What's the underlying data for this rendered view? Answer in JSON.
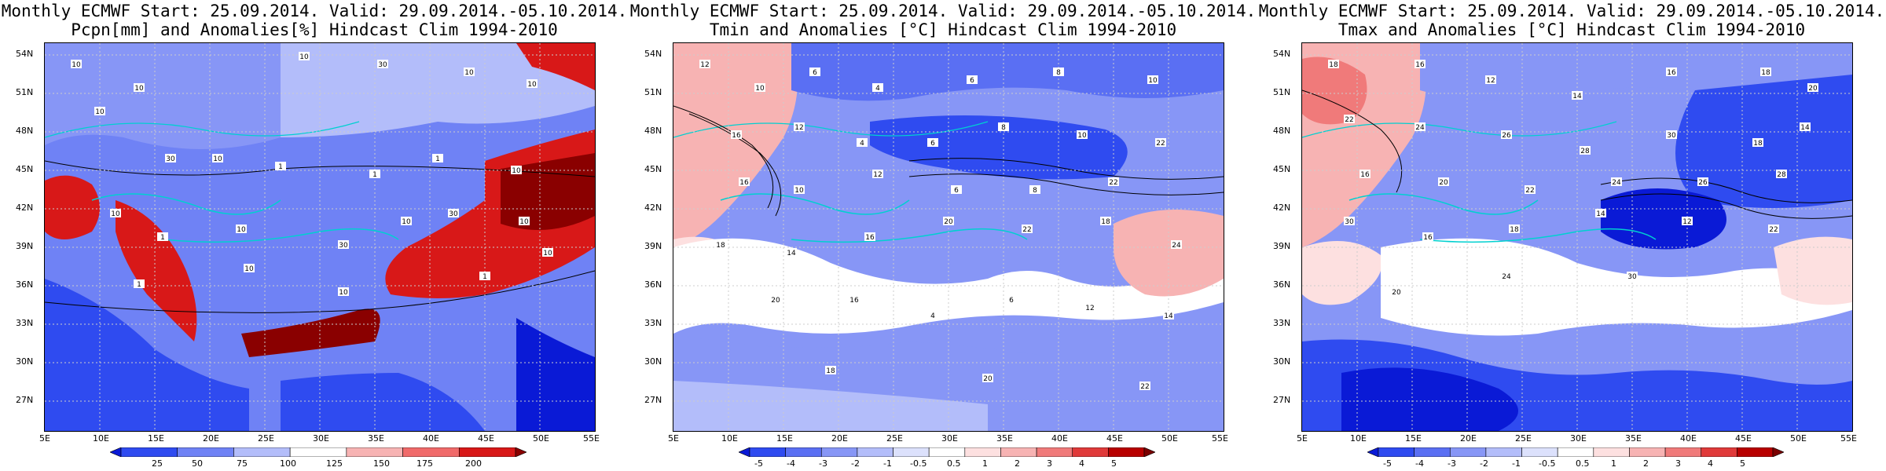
{
  "panels": [
    {
      "title1": "Monthly ECMWF Start: 25.09.2014. Valid: 29.09.2014.-05.10.2014.",
      "title2": "Pcpn[mm] and Anomalies[%] Hindcast Clim 1994-2010",
      "colorbar_labels": [
        "25",
        "50",
        "75",
        "100",
        "125",
        "150",
        "175",
        "200"
      ],
      "colorbar_colors": [
        "#0a1ad6",
        "#2f4bf0",
        "#6f82f5",
        "#b3bdfa",
        "#ffffff",
        "#f7b3b3",
        "#f06a6a",
        "#d81818",
        "#8a0000"
      ],
      "contour_labels": [
        "10",
        "10",
        "10",
        "10",
        "30",
        "10",
        "10",
        "30",
        "10",
        "1",
        "1",
        "1",
        "10",
        "10",
        "1",
        "10",
        "30",
        "10",
        "30",
        "10",
        "1",
        "10",
        "10",
        "1",
        "10"
      ]
    },
    {
      "title1": "Monthly ECMWF Start: 25.09.2014. Valid: 29.09.2014.-05.10.2014.",
      "title2": "Tmin and Anomalies [°C] Hindcast Clim 1994-2010",
      "colorbar_labels": [
        "-5",
        "-4",
        "-3",
        "-2",
        "-1",
        "-0.5",
        "0.5",
        "1",
        "2",
        "3",
        "4",
        "5"
      ],
      "colorbar_colors": [
        "#0a1ad6",
        "#2f4bf0",
        "#5a6ff3",
        "#8796f6",
        "#b3bdfa",
        "#dce1fc",
        "#ffffff",
        "#fde0e0",
        "#f7b3b3",
        "#f07a7a",
        "#e03a3a",
        "#b80000",
        "#7a0000"
      ],
      "contour_labels": [
        "12",
        "10",
        "6",
        "4",
        "6",
        "8",
        "10",
        "16",
        "12",
        "4",
        "6",
        "8",
        "10",
        "22",
        "16",
        "10",
        "12",
        "6",
        "8",
        "22",
        "18",
        "14",
        "16",
        "20",
        "22",
        "18",
        "24",
        "20",
        "16",
        "4",
        "6",
        "12",
        "14",
        "18",
        "20",
        "22"
      ]
    },
    {
      "title1": "Monthly ECMWF Start: 25.09.2014. Valid: 29.09.2014.-05.10.2014.",
      "title2": "Tmax and Anomalies [°C] Hindcast Clim 1994-2010",
      "colorbar_labels": [
        "-5",
        "-4",
        "-3",
        "-2",
        "-1",
        "-0.5",
        "0.5",
        "1",
        "2",
        "3",
        "4",
        "5"
      ],
      "colorbar_colors": [
        "#0a1ad6",
        "#2f4bf0",
        "#5a6ff3",
        "#8796f6",
        "#b3bdfa",
        "#dce1fc",
        "#ffffff",
        "#fde0e0",
        "#f7b3b3",
        "#f07a7a",
        "#e03a3a",
        "#b80000",
        "#7a0000"
      ],
      "contour_labels": [
        "18",
        "16",
        "12",
        "14",
        "16",
        "18",
        "20",
        "22",
        "24",
        "26",
        "28",
        "30",
        "18",
        "14",
        "16",
        "20",
        "22",
        "24",
        "26",
        "28",
        "30",
        "16",
        "18",
        "14",
        "12",
        "22",
        "20",
        "24",
        "30"
      ]
    }
  ],
  "y_ticks": [
    "54N",
    "51N",
    "48N",
    "45N",
    "42N",
    "39N",
    "36N",
    "33N",
    "30N",
    "27N"
  ],
  "x_ticks": [
    "5E",
    "10E",
    "15E",
    "20E",
    "25E",
    "30E",
    "35E",
    "40E",
    "45E",
    "50E",
    "55E"
  ]
}
